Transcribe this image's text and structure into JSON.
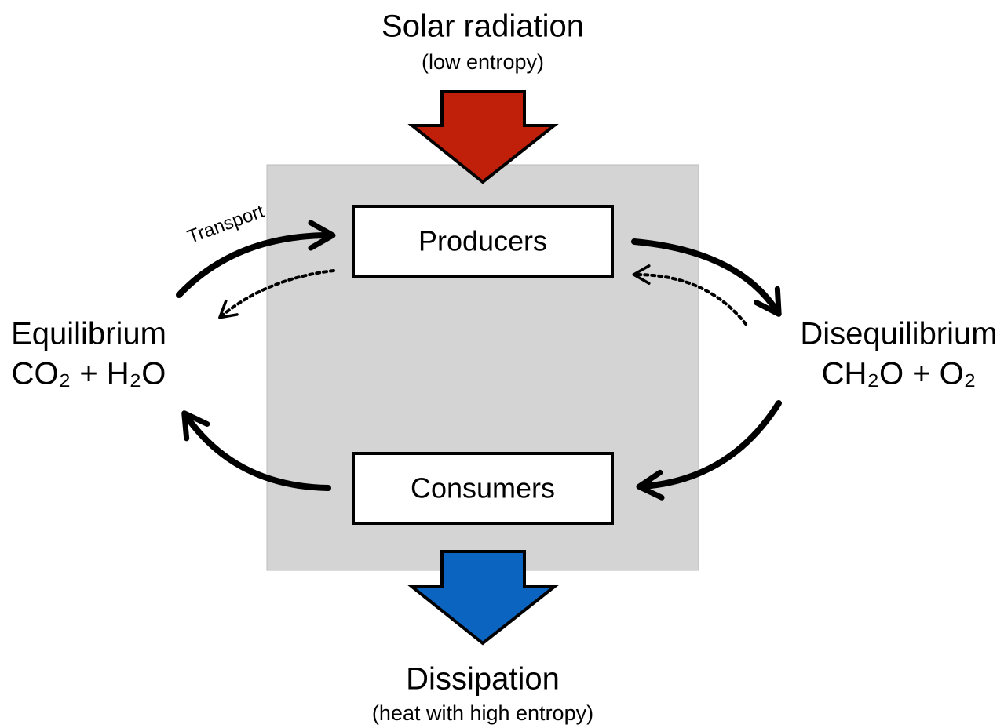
{
  "top": {
    "title": "Solar radiation",
    "subtitle": "(low entropy)"
  },
  "bottom": {
    "title": "Dissipation",
    "subtitle": "(heat with high entropy)"
  },
  "nodes": [
    {
      "label": "Producers"
    },
    {
      "label": "Consumers"
    }
  ],
  "left": {
    "title": "Equilibrium",
    "formula": "CO₂ + H₂O"
  },
  "right": {
    "title": "Disequilibrium",
    "formula": "CH₂O + O₂"
  },
  "annotations": [
    "Transport"
  ]
}
